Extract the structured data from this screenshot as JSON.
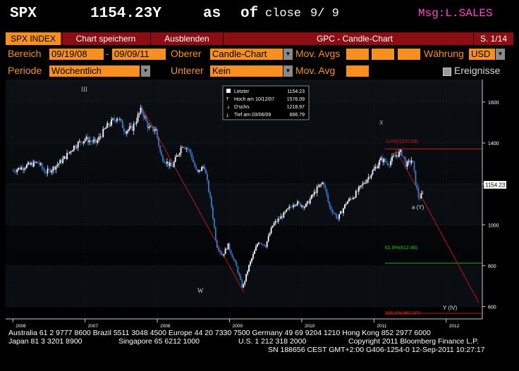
{
  "header": {
    "ticker": "SPX",
    "price_text": "1154.23Y",
    "as_text": "as",
    "of_text": "of",
    "close_text": "close",
    "date_text": "9/ 9",
    "msg": "Msg:L.SALES"
  },
  "tabbar": {
    "active_tab": "SPX INDEX",
    "save_chart": "Chart speichern",
    "hide": "Ausblenden",
    "chart_title": "GPC - Candle-Chart",
    "page": "S. 1/14"
  },
  "row1": {
    "range_label": "Bereich",
    "start_date": "09/19/08",
    "dash": "-",
    "end_date": "09/09/11",
    "upper_label": "Oberer",
    "upper_value": "Candle-Chart",
    "mov_avgs_label": "Mov. Avgs",
    "currency_label": "Währung",
    "currency_value": "USD"
  },
  "row2": {
    "period_label": "Periode",
    "period_value": "Wöchentlich",
    "lower_label": "Unterer",
    "lower_value": "Kein",
    "mov_avg_label": "Mov. Avg",
    "events_label": "Ereignisse"
  },
  "legend": {
    "last_label": "Letzter",
    "last_value": "1154.23",
    "high_label": "Hoch am 10/12/07",
    "high_value": "1576.09",
    "avg_label": "D'schn.",
    "avg_value": "1218.97",
    "low_label": "Tief am 03/06/09",
    "low_value": "666.79"
  },
  "annotations": {
    "wave_iii": "III",
    "wave_x": "X",
    "wave_w": "W",
    "wave_a": "a (Y)",
    "wave_y": "Y (IV)",
    "fib_top": "0.0%(1370.58)",
    "fib_618": "61.8%(812.46)",
    "fib_100": "100.0%(467.37)",
    "last_price_tag": "1154.23"
  },
  "chart_data": {
    "type": "candlestick",
    "y_ticks": [
      600,
      800,
      1000,
      1200,
      1400,
      1600
    ],
    "ylim": [
      540,
      1710
    ],
    "x_ticks": [
      "2006",
      "2007",
      "2008",
      "2009",
      "2010",
      "2011",
      "2012"
    ],
    "xlim": [
      2005.9,
      2012.5
    ],
    "weekly_close_approx": [
      {
        "x": 2006.0,
        "y": 1265
      },
      {
        "x": 2006.2,
        "y": 1290
      },
      {
        "x": 2006.35,
        "y": 1305
      },
      {
        "x": 2006.45,
        "y": 1255
      },
      {
        "x": 2006.55,
        "y": 1275
      },
      {
        "x": 2006.7,
        "y": 1320
      },
      {
        "x": 2006.85,
        "y": 1385
      },
      {
        "x": 2007.0,
        "y": 1420
      },
      {
        "x": 2007.15,
        "y": 1400
      },
      {
        "x": 2007.3,
        "y": 1480
      },
      {
        "x": 2007.45,
        "y": 1530
      },
      {
        "x": 2007.55,
        "y": 1460
      },
      {
        "x": 2007.65,
        "y": 1470
      },
      {
        "x": 2007.78,
        "y": 1565
      },
      {
        "x": 2007.88,
        "y": 1470
      },
      {
        "x": 2007.98,
        "y": 1465
      },
      {
        "x": 2008.05,
        "y": 1335
      },
      {
        "x": 2008.2,
        "y": 1280
      },
      {
        "x": 2008.35,
        "y": 1395
      },
      {
        "x": 2008.45,
        "y": 1360
      },
      {
        "x": 2008.55,
        "y": 1250
      },
      {
        "x": 2008.65,
        "y": 1290
      },
      {
        "x": 2008.75,
        "y": 1090
      },
      {
        "x": 2008.82,
        "y": 900
      },
      {
        "x": 2008.9,
        "y": 850
      },
      {
        "x": 2008.98,
        "y": 900
      },
      {
        "x": 2009.1,
        "y": 790
      },
      {
        "x": 2009.18,
        "y": 690
      },
      {
        "x": 2009.27,
        "y": 800
      },
      {
        "x": 2009.4,
        "y": 920
      },
      {
        "x": 2009.5,
        "y": 900
      },
      {
        "x": 2009.6,
        "y": 1000
      },
      {
        "x": 2009.75,
        "y": 1050
      },
      {
        "x": 2009.9,
        "y": 1110
      },
      {
        "x": 2010.05,
        "y": 1090
      },
      {
        "x": 2010.2,
        "y": 1170
      },
      {
        "x": 2010.3,
        "y": 1210
      },
      {
        "x": 2010.38,
        "y": 1090
      },
      {
        "x": 2010.5,
        "y": 1030
      },
      {
        "x": 2010.62,
        "y": 1110
      },
      {
        "x": 2010.72,
        "y": 1140
      },
      {
        "x": 2010.85,
        "y": 1200
      },
      {
        "x": 2010.98,
        "y": 1260
      },
      {
        "x": 2011.1,
        "y": 1320
      },
      {
        "x": 2011.2,
        "y": 1300
      },
      {
        "x": 2011.3,
        "y": 1340
      },
      {
        "x": 2011.38,
        "y": 1355
      },
      {
        "x": 2011.45,
        "y": 1290
      },
      {
        "x": 2011.53,
        "y": 1320
      },
      {
        "x": 2011.58,
        "y": 1200
      },
      {
        "x": 2011.62,
        "y": 1130
      },
      {
        "x": 2011.69,
        "y": 1154
      }
    ],
    "trend_lines": [
      {
        "name": "downtrend",
        "from": {
          "x": 2007.8,
          "y": 1565
        },
        "to": {
          "x": 2009.2,
          "y": 670
        }
      },
      {
        "name": "projection",
        "from": {
          "x": 2011.3,
          "y": 1370
        },
        "to": {
          "x": 2012.45,
          "y": 620
        }
      }
    ],
    "fib_levels": [
      {
        "label": "0.0%(1370.58)",
        "value": 1370.58,
        "color": "#d01818"
      },
      {
        "label": "61.8%(812.46)",
        "value": 812.46,
        "color": "#18b818"
      },
      {
        "label": "100.0%(467.37)",
        "value": 467.37,
        "color": "#d01818"
      }
    ],
    "last_price": 1154.23
  },
  "footer": {
    "line1_left": "Australia 61 2 9777 8600 Brazil 5511 3048 4500 Europe 44 20 7330 7500 Germany 49 69 9204 1210 Hong Kong 852 2977 6000",
    "line2_left": "Japan 81 3 3201 8900",
    "line2_mid1": "Singapore 65 6212 1000",
    "line2_mid2": "U.S. 1 212 318 2000",
    "line2_right": "Copyright 2011 Bloomberg Finance L.P.",
    "line3_right": "SN 188656 CEST GMT+2:00 G406-1254-0 12-Sep-2011 10:27:17"
  },
  "colors": {
    "accent_orange": "#f7901e",
    "tab_red": "#8c0d12",
    "candle_blue": "#3a78c8",
    "trend_red": "#c0141a",
    "msg_magenta": "#ff4ac8"
  }
}
